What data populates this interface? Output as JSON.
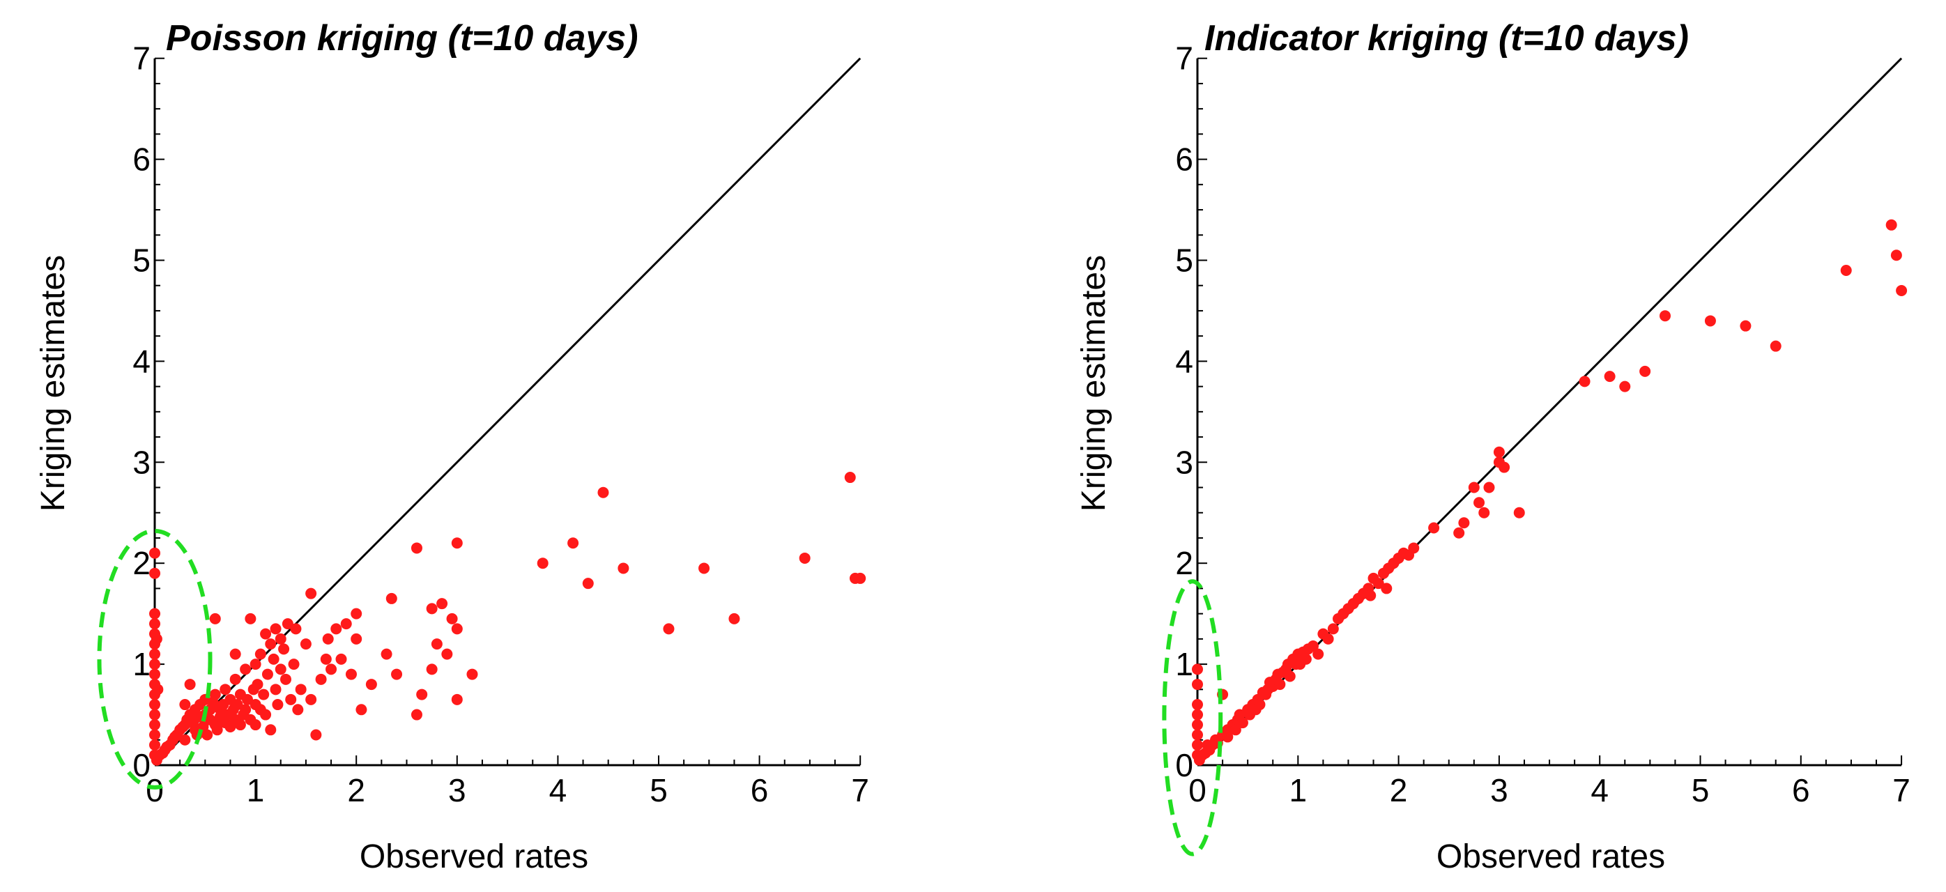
{
  "chart_data": [
    {
      "type": "scatter",
      "title": "Poisson kriging (t=10 days)",
      "xlabel": "Observed rates",
      "ylabel": "Kriging estimates",
      "xlim": [
        0,
        7
      ],
      "ylim": [
        0,
        7
      ],
      "x_ticks": [
        "0",
        "1",
        "2",
        "3",
        "4",
        "5",
        "6",
        "7"
      ],
      "y_ticks": [
        "0",
        "1",
        "2",
        "3",
        "4",
        "5",
        "6",
        "7"
      ],
      "minor_ticks_per_unit": 4,
      "grid": false,
      "reference_line": {
        "from": [
          0,
          0
        ],
        "to": [
          7,
          7
        ],
        "color": "#000000"
      },
      "highlight_ellipse": {
        "center": [
          0,
          1.05
        ],
        "rx": 0.55,
        "ry": 1.27,
        "color": "#22dd22",
        "style": "dashed"
      },
      "point_color": "#ff1a1a",
      "points": [
        [
          0,
          2.1
        ],
        [
          0,
          1.9
        ],
        [
          0,
          1.5
        ],
        [
          0,
          1.4
        ],
        [
          0,
          1.3
        ],
        [
          0,
          1.2
        ],
        [
          0,
          1.1
        ],
        [
          0,
          1.0
        ],
        [
          0,
          0.9
        ],
        [
          0,
          0.8
        ],
        [
          0,
          0.7
        ],
        [
          0,
          0.6
        ],
        [
          0,
          0.5
        ],
        [
          0,
          0.4
        ],
        [
          0,
          0.3
        ],
        [
          0,
          0.2
        ],
        [
          0,
          0.1
        ],
        [
          0.02,
          0.05
        ],
        [
          0.02,
          1.25
        ],
        [
          0.03,
          0.75
        ],
        [
          0.05,
          0.1
        ],
        [
          0.08,
          0.12
        ],
        [
          0.1,
          0.15
        ],
        [
          0.12,
          0.18
        ],
        [
          0.15,
          0.2
        ],
        [
          0.18,
          0.25
        ],
        [
          0.2,
          0.28
        ],
        [
          0.22,
          0.3
        ],
        [
          0.25,
          0.35
        ],
        [
          0.28,
          0.38
        ],
        [
          0.3,
          0.4
        ],
        [
          0.3,
          0.6
        ],
        [
          0.3,
          0.25
        ],
        [
          0.32,
          0.45
        ],
        [
          0.35,
          0.5
        ],
        [
          0.35,
          0.8
        ],
        [
          0.38,
          0.42
        ],
        [
          0.4,
          0.55
        ],
        [
          0.4,
          0.35
        ],
        [
          0.42,
          0.3
        ],
        [
          0.45,
          0.6
        ],
        [
          0.45,
          0.48
        ],
        [
          0.48,
          0.38
        ],
        [
          0.5,
          0.5
        ],
        [
          0.5,
          0.65
        ],
        [
          0.52,
          0.3
        ],
        [
          0.55,
          0.55
        ],
        [
          0.55,
          0.45
        ],
        [
          0.58,
          0.62
        ],
        [
          0.6,
          0.4
        ],
        [
          0.6,
          0.7
        ],
        [
          0.6,
          1.45
        ],
        [
          0.62,
          0.35
        ],
        [
          0.65,
          0.55
        ],
        [
          0.65,
          0.48
        ],
        [
          0.68,
          0.6
        ],
        [
          0.7,
          0.42
        ],
        [
          0.7,
          0.75
        ],
        [
          0.72,
          0.5
        ],
        [
          0.75,
          0.38
        ],
        [
          0.75,
          0.65
        ],
        [
          0.78,
          0.55
        ],
        [
          0.8,
          0.45
        ],
        [
          0.8,
          0.85
        ],
        [
          0.8,
          1.1
        ],
        [
          0.82,
          0.6
        ],
        [
          0.85,
          0.4
        ],
        [
          0.85,
          0.7
        ],
        [
          0.88,
          0.5
        ],
        [
          0.9,
          0.95
        ],
        [
          0.9,
          0.55
        ],
        [
          0.92,
          0.65
        ],
        [
          0.95,
          0.45
        ],
        [
          0.95,
          1.45
        ],
        [
          0.98,
          0.75
        ],
        [
          1.0,
          0.6
        ],
        [
          1.0,
          1.0
        ],
        [
          1.0,
          0.4
        ],
        [
          1.02,
          0.8
        ],
        [
          1.05,
          1.1
        ],
        [
          1.05,
          0.55
        ],
        [
          1.08,
          0.7
        ],
        [
          1.1,
          1.3
        ],
        [
          1.1,
          0.5
        ],
        [
          1.12,
          0.9
        ],
        [
          1.15,
          1.2
        ],
        [
          1.15,
          0.35
        ],
        [
          1.18,
          1.05
        ],
        [
          1.2,
          1.35
        ],
        [
          1.2,
          0.75
        ],
        [
          1.22,
          0.6
        ],
        [
          1.25,
          1.25
        ],
        [
          1.25,
          0.95
        ],
        [
          1.28,
          1.15
        ],
        [
          1.3,
          0.85
        ],
        [
          1.32,
          1.4
        ],
        [
          1.35,
          0.65
        ],
        [
          1.38,
          1.0
        ],
        [
          1.4,
          1.35
        ],
        [
          1.42,
          0.55
        ],
        [
          1.45,
          0.75
        ],
        [
          1.5,
          1.2
        ],
        [
          1.55,
          1.7
        ],
        [
          1.55,
          0.65
        ],
        [
          1.6,
          0.3
        ],
        [
          1.65,
          0.85
        ],
        [
          1.7,
          1.05
        ],
        [
          1.72,
          1.25
        ],
        [
          1.75,
          0.95
        ],
        [
          1.8,
          1.35
        ],
        [
          1.85,
          1.05
        ],
        [
          1.9,
          1.4
        ],
        [
          1.95,
          0.9
        ],
        [
          2.0,
          1.25
        ],
        [
          2.0,
          1.5
        ],
        [
          2.05,
          0.55
        ],
        [
          2.15,
          0.8
        ],
        [
          2.3,
          1.1
        ],
        [
          2.35,
          1.65
        ],
        [
          2.4,
          0.9
        ],
        [
          2.6,
          2.15
        ],
        [
          2.6,
          0.5
        ],
        [
          2.65,
          0.7
        ],
        [
          2.75,
          1.55
        ],
        [
          2.75,
          0.95
        ],
        [
          2.8,
          1.2
        ],
        [
          2.85,
          1.6
        ],
        [
          2.9,
          1.1
        ],
        [
          2.95,
          1.45
        ],
        [
          3.0,
          2.2
        ],
        [
          3.0,
          1.35
        ],
        [
          3.0,
          0.65
        ],
        [
          3.15,
          0.9
        ],
        [
          3.85,
          2.0
        ],
        [
          4.15,
          2.2
        ],
        [
          4.3,
          1.8
        ],
        [
          4.45,
          2.7
        ],
        [
          4.65,
          1.95
        ],
        [
          5.1,
          1.35
        ],
        [
          5.45,
          1.95
        ],
        [
          5.75,
          1.45
        ],
        [
          6.45,
          2.05
        ],
        [
          6.9,
          2.85
        ],
        [
          6.95,
          1.85
        ],
        [
          7.0,
          1.85
        ]
      ]
    },
    {
      "type": "scatter",
      "title": "Indicator kriging (t=10 days)",
      "xlabel": "Observed rates",
      "ylabel": "Kriging estimates",
      "xlim": [
        0,
        7
      ],
      "ylim": [
        0,
        7
      ],
      "x_ticks": [
        "0",
        "1",
        "2",
        "3",
        "4",
        "5",
        "6",
        "7"
      ],
      "y_ticks": [
        "0",
        "1",
        "2",
        "3",
        "4",
        "5",
        "6",
        "7"
      ],
      "minor_ticks_per_unit": 4,
      "grid": false,
      "reference_line": {
        "from": [
          0,
          0
        ],
        "to": [
          7,
          7
        ],
        "color": "#000000"
      },
      "highlight_ellipse": {
        "center": [
          -0.05,
          0.47
        ],
        "rx": 0.28,
        "ry": 1.35,
        "color": "#22dd22",
        "style": "dashed"
      },
      "point_color": "#ff1a1a",
      "points": [
        [
          0,
          0.95
        ],
        [
          0,
          0.8
        ],
        [
          0,
          0.6
        ],
        [
          0,
          0.5
        ],
        [
          0,
          0.4
        ],
        [
          0,
          0.3
        ],
        [
          0,
          0.2
        ],
        [
          0,
          0.1
        ],
        [
          0.02,
          0.05
        ],
        [
          0.05,
          0.1
        ],
        [
          0.08,
          0.12
        ],
        [
          0.1,
          0.2
        ],
        [
          0.12,
          0.15
        ],
        [
          0.15,
          0.2
        ],
        [
          0.18,
          0.25
        ],
        [
          0.2,
          0.22
        ],
        [
          0.25,
          0.3
        ],
        [
          0.25,
          0.7
        ],
        [
          0.3,
          0.35
        ],
        [
          0.3,
          0.28
        ],
        [
          0.35,
          0.4
        ],
        [
          0.38,
          0.35
        ],
        [
          0.4,
          0.45
        ],
        [
          0.42,
          0.5
        ],
        [
          0.45,
          0.42
        ],
        [
          0.5,
          0.55
        ],
        [
          0.52,
          0.5
        ],
        [
          0.55,
          0.6
        ],
        [
          0.58,
          0.55
        ],
        [
          0.6,
          0.65
        ],
        [
          0.62,
          0.6
        ],
        [
          0.65,
          0.72
        ],
        [
          0.68,
          0.7
        ],
        [
          0.7,
          0.75
        ],
        [
          0.72,
          0.82
        ],
        [
          0.75,
          0.78
        ],
        [
          0.78,
          0.85
        ],
        [
          0.8,
          0.9
        ],
        [
          0.82,
          0.8
        ],
        [
          0.85,
          0.92
        ],
        [
          0.88,
          0.95
        ],
        [
          0.9,
          1.0
        ],
        [
          0.92,
          0.88
        ],
        [
          0.95,
          1.05
        ],
        [
          0.98,
          1.0
        ],
        [
          1.0,
          1.1
        ],
        [
          1.02,
          1.0
        ],
        [
          1.05,
          1.12
        ],
        [
          1.08,
          1.05
        ],
        [
          1.1,
          1.15
        ],
        [
          1.15,
          1.18
        ],
        [
          1.2,
          1.1
        ],
        [
          1.25,
          1.3
        ],
        [
          1.3,
          1.25
        ],
        [
          1.35,
          1.35
        ],
        [
          1.4,
          1.45
        ],
        [
          1.45,
          1.5
        ],
        [
          1.5,
          1.55
        ],
        [
          1.55,
          1.6
        ],
        [
          1.6,
          1.65
        ],
        [
          1.65,
          1.7
        ],
        [
          1.7,
          1.75
        ],
        [
          1.72,
          1.68
        ],
        [
          1.75,
          1.85
        ],
        [
          1.8,
          1.8
        ],
        [
          1.85,
          1.9
        ],
        [
          1.88,
          1.75
        ],
        [
          1.9,
          1.95
        ],
        [
          1.95,
          2.0
        ],
        [
          2.0,
          2.05
        ],
        [
          2.05,
          2.1
        ],
        [
          2.1,
          2.08
        ],
        [
          2.15,
          2.15
        ],
        [
          2.35,
          2.35
        ],
        [
          2.6,
          2.3
        ],
        [
          2.65,
          2.4
        ],
        [
          2.75,
          2.75
        ],
        [
          2.8,
          2.6
        ],
        [
          2.85,
          2.5
        ],
        [
          2.9,
          2.75
        ],
        [
          3.0,
          3.0
        ],
        [
          3.0,
          3.1
        ],
        [
          3.05,
          2.95
        ],
        [
          3.2,
          2.5
        ],
        [
          3.85,
          3.8
        ],
        [
          4.1,
          3.85
        ],
        [
          4.25,
          3.75
        ],
        [
          4.45,
          3.9
        ],
        [
          4.65,
          4.45
        ],
        [
          5.1,
          4.4
        ],
        [
          5.45,
          4.35
        ],
        [
          5.75,
          4.15
        ],
        [
          6.45,
          4.9
        ],
        [
          6.9,
          5.35
        ],
        [
          6.95,
          5.05
        ],
        [
          7.0,
          4.7
        ]
      ]
    }
  ]
}
